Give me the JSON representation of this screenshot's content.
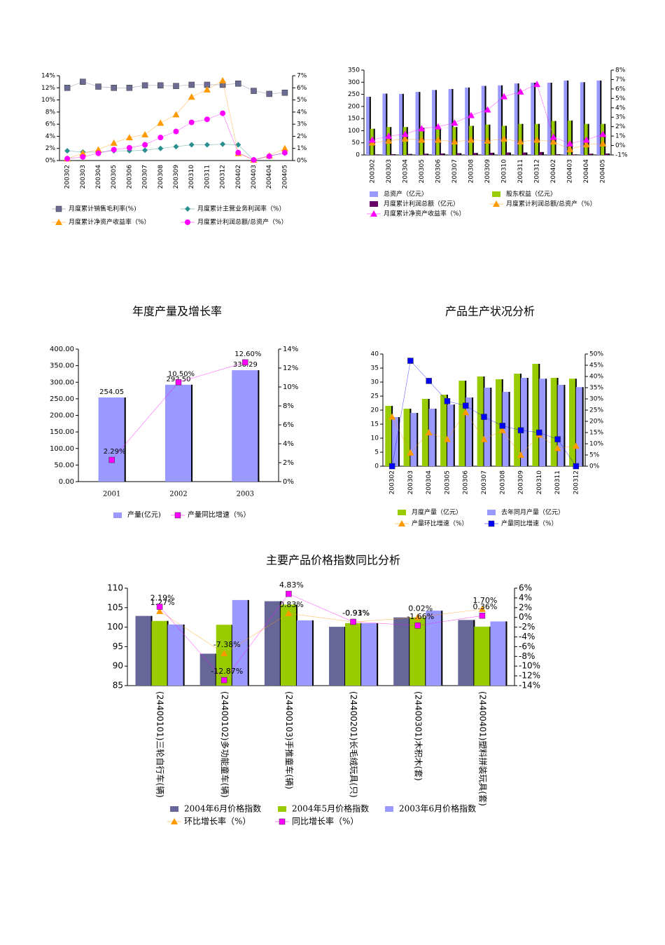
{
  "chart_data": [
    {
      "type": "line",
      "categories": [
        "200302",
        "200303",
        "200304",
        "200305",
        "200306",
        "200307",
        "200308",
        "200309",
        "200310",
        "200311",
        "200312",
        "200402",
        "200403",
        "200404",
        "200405"
      ],
      "series": [
        {
          "name": "月度累计销售毛利率(%)",
          "color": "#6b6b94",
          "marker": "square",
          "values": [
            12.0,
            13.0,
            12.2,
            12.0,
            12.0,
            12.4,
            12.4,
            12.3,
            12.5,
            12.5,
            12.5,
            12.7,
            11.5,
            11.0,
            11.2
          ]
        },
        {
          "name": "月度累计主营业务利润率（%）",
          "color": "#2a8f8f",
          "marker": "diamond",
          "values": [
            1.6,
            1.4,
            1.4,
            1.6,
            1.6,
            1.7,
            2.0,
            2.3,
            2.6,
            2.6,
            2.7,
            2.6,
            0.1,
            0.8,
            1.2
          ]
        },
        {
          "name": "月度累计净资产收益率（%）",
          "color": "#ff9900",
          "marker": "triangle",
          "axis": "y2",
          "values": [
            0.15,
            0.6,
            0.9,
            1.45,
            1.9,
            2.15,
            3.1,
            3.8,
            5.25,
            5.85,
            6.6,
            0.6,
            0.05,
            0.4,
            1.0
          ]
        },
        {
          "name": "月度累计利润总额/总资产（%）",
          "color": "#ff00ff",
          "marker": "circle",
          "axis": "y2",
          "values": [
            0.15,
            0.3,
            0.6,
            0.9,
            1.05,
            1.3,
            1.9,
            2.4,
            3.15,
            3.4,
            3.9,
            0.65,
            0.05,
            0.35,
            0.65
          ]
        }
      ],
      "ylim": [
        0,
        14
      ],
      "yticks": [
        {
          "value": 0,
          "label": "0%"
        },
        {
          "value": 2,
          "label": "2%"
        },
        {
          "value": 4,
          "label": "4%"
        },
        {
          "value": 6,
          "label": "6%"
        },
        {
          "value": 8,
          "label": "8%"
        },
        {
          "value": 10,
          "label": "10%"
        },
        {
          "value": 12,
          "label": "12%"
        },
        {
          "value": 14,
          "label": "14%"
        }
      ],
      "y2lim": [
        0,
        7
      ],
      "y2ticks": [
        {
          "value": 0,
          "label": "0%"
        },
        {
          "value": 1,
          "label": "1%"
        },
        {
          "value": 2,
          "label": "2%"
        },
        {
          "value": 3,
          "label": "3%"
        },
        {
          "value": 4,
          "label": "4%"
        },
        {
          "value": 5,
          "label": "5%"
        },
        {
          "value": 6,
          "label": "6%"
        },
        {
          "value": 7,
          "label": "7%"
        }
      ]
    },
    {
      "type": "bar",
      "categories": [
        "200302",
        "200303",
        "200304",
        "200305",
        "200306",
        "200307",
        "200308",
        "200309",
        "200310",
        "200311",
        "200312",
        "200402",
        "200403",
        "200404",
        "200405"
      ],
      "series": [
        {
          "name": "总资产（亿元）",
          "color": "#9999ff",
          "type": "bar",
          "values": [
            240,
            253,
            252,
            260,
            268,
            272,
            278,
            285,
            287,
            295,
            298,
            298,
            307,
            300,
            307
          ]
        },
        {
          "name": "股东权益（亿元）",
          "color": "#99cc00",
          "type": "bar",
          "values": [
            108,
            115,
            115,
            112,
            112,
            115,
            120,
            125,
            120,
            128,
            128,
            140,
            142,
            128,
            128
          ]
        },
        {
          "name": "月度累计利润总额（亿元）",
          "color": "#660066",
          "type": "bar",
          "values": [
            2,
            3,
            4,
            5,
            6,
            7,
            8,
            9,
            10,
            10,
            12,
            3,
            2,
            5,
            6
          ]
        },
        {
          "name": "月度累计利润总额/总资产（%）",
          "color": "#ff9900",
          "type": "line",
          "marker": "triangle",
          "axis": "y2",
          "values": [
            0.3,
            0.5,
            0.7,
            0.6,
            0.6,
            0.4,
            0.6,
            0.5,
            0.7,
            0.4,
            0.6,
            0.4,
            -0.4,
            0.1,
            0.2
          ]
        },
        {
          "name": "月度累计净资产收益率（%）",
          "color": "#ff00ff",
          "type": "line",
          "marker": "triangle",
          "axis": "y2",
          "values": [
            0.6,
            1.0,
            1.2,
            1.8,
            2.0,
            2.4,
            3.2,
            3.8,
            5.2,
            5.7,
            6.5,
            0.9,
            0.2,
            0.6,
            1.2
          ]
        }
      ],
      "ylim": [
        0,
        350
      ],
      "yticks": [
        0,
        50,
        100,
        150,
        200,
        250,
        300,
        350
      ],
      "y2lim": [
        -1,
        8
      ],
      "y2ticks": [
        {
          "value": -1,
          "label": "-1%"
        },
        {
          "value": 0,
          "label": "0%"
        },
        {
          "value": 1,
          "label": "1%"
        },
        {
          "value": 2,
          "label": "2%"
        },
        {
          "value": 3,
          "label": "3%"
        },
        {
          "value": 4,
          "label": "4%"
        },
        {
          "value": 5,
          "label": "5%"
        },
        {
          "value": 6,
          "label": "6%"
        },
        {
          "value": 7,
          "label": "7%"
        },
        {
          "value": 8,
          "label": "8%"
        }
      ]
    },
    {
      "type": "bar",
      "title": "年度产量及增长率",
      "categories": [
        "2001",
        "2002",
        "2003"
      ],
      "series": [
        {
          "name": "产量(亿元)",
          "color": "#9999ff",
          "type": "bar",
          "values": [
            254.05,
            292.5,
            336.29
          ],
          "value_labels": [
            "254.05",
            "292.50",
            "336.29"
          ]
        },
        {
          "name": "产量同比增速（%）",
          "color": "#ff00ff",
          "type": "line",
          "marker": "square",
          "axis": "y2",
          "values": [
            2.29,
            10.5,
            12.6
          ],
          "value_labels": [
            "2.29%",
            "10.50%",
            "12.60%"
          ]
        }
      ],
      "ylim": [
        0,
        400
      ],
      "yticks": [
        {
          "value": 0,
          "label": "0.00"
        },
        {
          "value": 50,
          "label": "50.00"
        },
        {
          "value": 100,
          "label": "100.00"
        },
        {
          "value": 150,
          "label": "150.00"
        },
        {
          "value": 200,
          "label": "200.00"
        },
        {
          "value": 250,
          "label": "250.00"
        },
        {
          "value": 300,
          "label": "300.00"
        },
        {
          "value": 350,
          "label": "350.00"
        },
        {
          "value": 400,
          "label": "400.00"
        }
      ],
      "y2lim": [
        0,
        14
      ],
      "y2ticks": [
        {
          "value": 0,
          "label": "0%"
        },
        {
          "value": 2,
          "label": "2%"
        },
        {
          "value": 4,
          "label": "4%"
        },
        {
          "value": 6,
          "label": "6%"
        },
        {
          "value": 8,
          "label": "8%"
        },
        {
          "value": 10,
          "label": "10%"
        },
        {
          "value": 12,
          "label": "12%"
        },
        {
          "value": 14,
          "label": "14%"
        }
      ]
    },
    {
      "type": "bar",
      "title": "产品生产状况分析",
      "categories": [
        "200302",
        "200303",
        "200304",
        "200305",
        "200306",
        "200307",
        "200308",
        "200309",
        "200310",
        "200311",
        "200312"
      ],
      "series": [
        {
          "name": "月度产量（亿元）",
          "color": "#99cc00",
          "type": "bar",
          "values": [
            21.5,
            20.5,
            24,
            25.5,
            30.5,
            32,
            31,
            33,
            36.5,
            31.5,
            31.2
          ]
        },
        {
          "name": "去年同月产量（亿元）",
          "color": "#9999ff",
          "type": "bar",
          "values": [
            17.5,
            19,
            20.5,
            22,
            24.5,
            28,
            26.5,
            31.5,
            31.2,
            29,
            28.2
          ]
        },
        {
          "name": "产量环比增速（%）",
          "color": "#ff9900",
          "type": "line",
          "marker": "triangle",
          "axis": "y2",
          "values": [
            22,
            6,
            15,
            12,
            24,
            12,
            16,
            5,
            14,
            8,
            9
          ]
        },
        {
          "name": "产量同比增速（%）",
          "color": "#0000ff",
          "type": "line",
          "marker": "square",
          "axis": "y2",
          "values": [
            0,
            47,
            38,
            29,
            27,
            22,
            18,
            16,
            15,
            12,
            0
          ]
        }
      ],
      "ylim": [
        0,
        40
      ],
      "yticks": [
        0,
        5,
        10,
        15,
        20,
        25,
        30,
        35,
        40
      ],
      "y2lim": [
        0,
        50
      ],
      "y2ticks": [
        {
          "value": 0,
          "label": "0%"
        },
        {
          "value": 5,
          "label": "5%"
        },
        {
          "value": 10,
          "label": "10%"
        },
        {
          "value": 15,
          "label": "15%"
        },
        {
          "value": 20,
          "label": "20%"
        },
        {
          "value": 25,
          "label": "25%"
        },
        {
          "value": 30,
          "label": "30%"
        },
        {
          "value": 35,
          "label": "35%"
        },
        {
          "value": 40,
          "label": "40%"
        },
        {
          "value": 45,
          "label": "45%"
        },
        {
          "value": 50,
          "label": "50%"
        }
      ]
    },
    {
      "type": "bar",
      "title": "主要产品价格指数同比分析",
      "categories": [
        "(24400101)三轮自行车(辆)",
        "(24400102)多功能童车(辆)",
        "(24400103)手推童车(辆)",
        "(24400201)长毛绒玩具(只)",
        "(24400301)木积木(套)",
        "(24400401)塑料拼装玩具(套)"
      ],
      "series": [
        {
          "name": "2004年6月价格指数",
          "color": "#666699",
          "type": "bar",
          "values": [
            102.88,
            93.19,
            106.65,
            100.09,
            102.5,
            101.84
          ]
        },
        {
          "name": "2004年5月价格指数",
          "color": "#99cc00",
          "type": "bar",
          "values": [
            101.59,
            100.61,
            105.77,
            101.03,
            102.48,
            100.14
          ]
        },
        {
          "name": "2003年6月价格指数",
          "color": "#9999ff",
          "type": "bar",
          "values": [
            100.68,
            106.96,
            101.74,
            101.01,
            104.23,
            101.47
          ]
        },
        {
          "name": "环比增长率（%）",
          "color": "#ff9900",
          "type": "line",
          "marker": "triangle",
          "axis": "y2",
          "values": [
            1.27,
            -7.38,
            0.83,
            -0.93,
            0.02,
            1.7
          ],
          "value_labels": [
            "1.27%",
            "-7.38%",
            "0.83%",
            "-0.93%",
            "0.02%",
            "1.70%"
          ]
        },
        {
          "name": "同比增长率（%）",
          "color": "#ff00ff",
          "type": "line",
          "marker": "square",
          "axis": "y2",
          "values": [
            2.19,
            -12.87,
            4.83,
            -0.91,
            -1.66,
            0.36
          ],
          "value_labels": [
            "2.19%",
            "-12.87%",
            "4.83%",
            "-0.91%",
            "-1.66%",
            "0.36%"
          ]
        }
      ],
      "ylim": [
        85,
        110
      ],
      "yticks": [
        85,
        90,
        95,
        100,
        105,
        110
      ],
      "y2lim": [
        -14,
        6
      ],
      "y2ticks": [
        {
          "value": -14,
          "label": "-14%"
        },
        {
          "value": -12,
          "label": "-12%"
        },
        {
          "value": -10,
          "label": "-10%"
        },
        {
          "value": -8,
          "label": "-8%"
        },
        {
          "value": -6,
          "label": "-6%"
        },
        {
          "value": -4,
          "label": "-4%"
        },
        {
          "value": -2,
          "label": "-2%"
        },
        {
          "value": 0,
          "label": "0%"
        },
        {
          "value": 2,
          "label": "2%"
        },
        {
          "value": 4,
          "label": "4%"
        },
        {
          "value": 6,
          "label": "6%"
        }
      ]
    }
  ]
}
